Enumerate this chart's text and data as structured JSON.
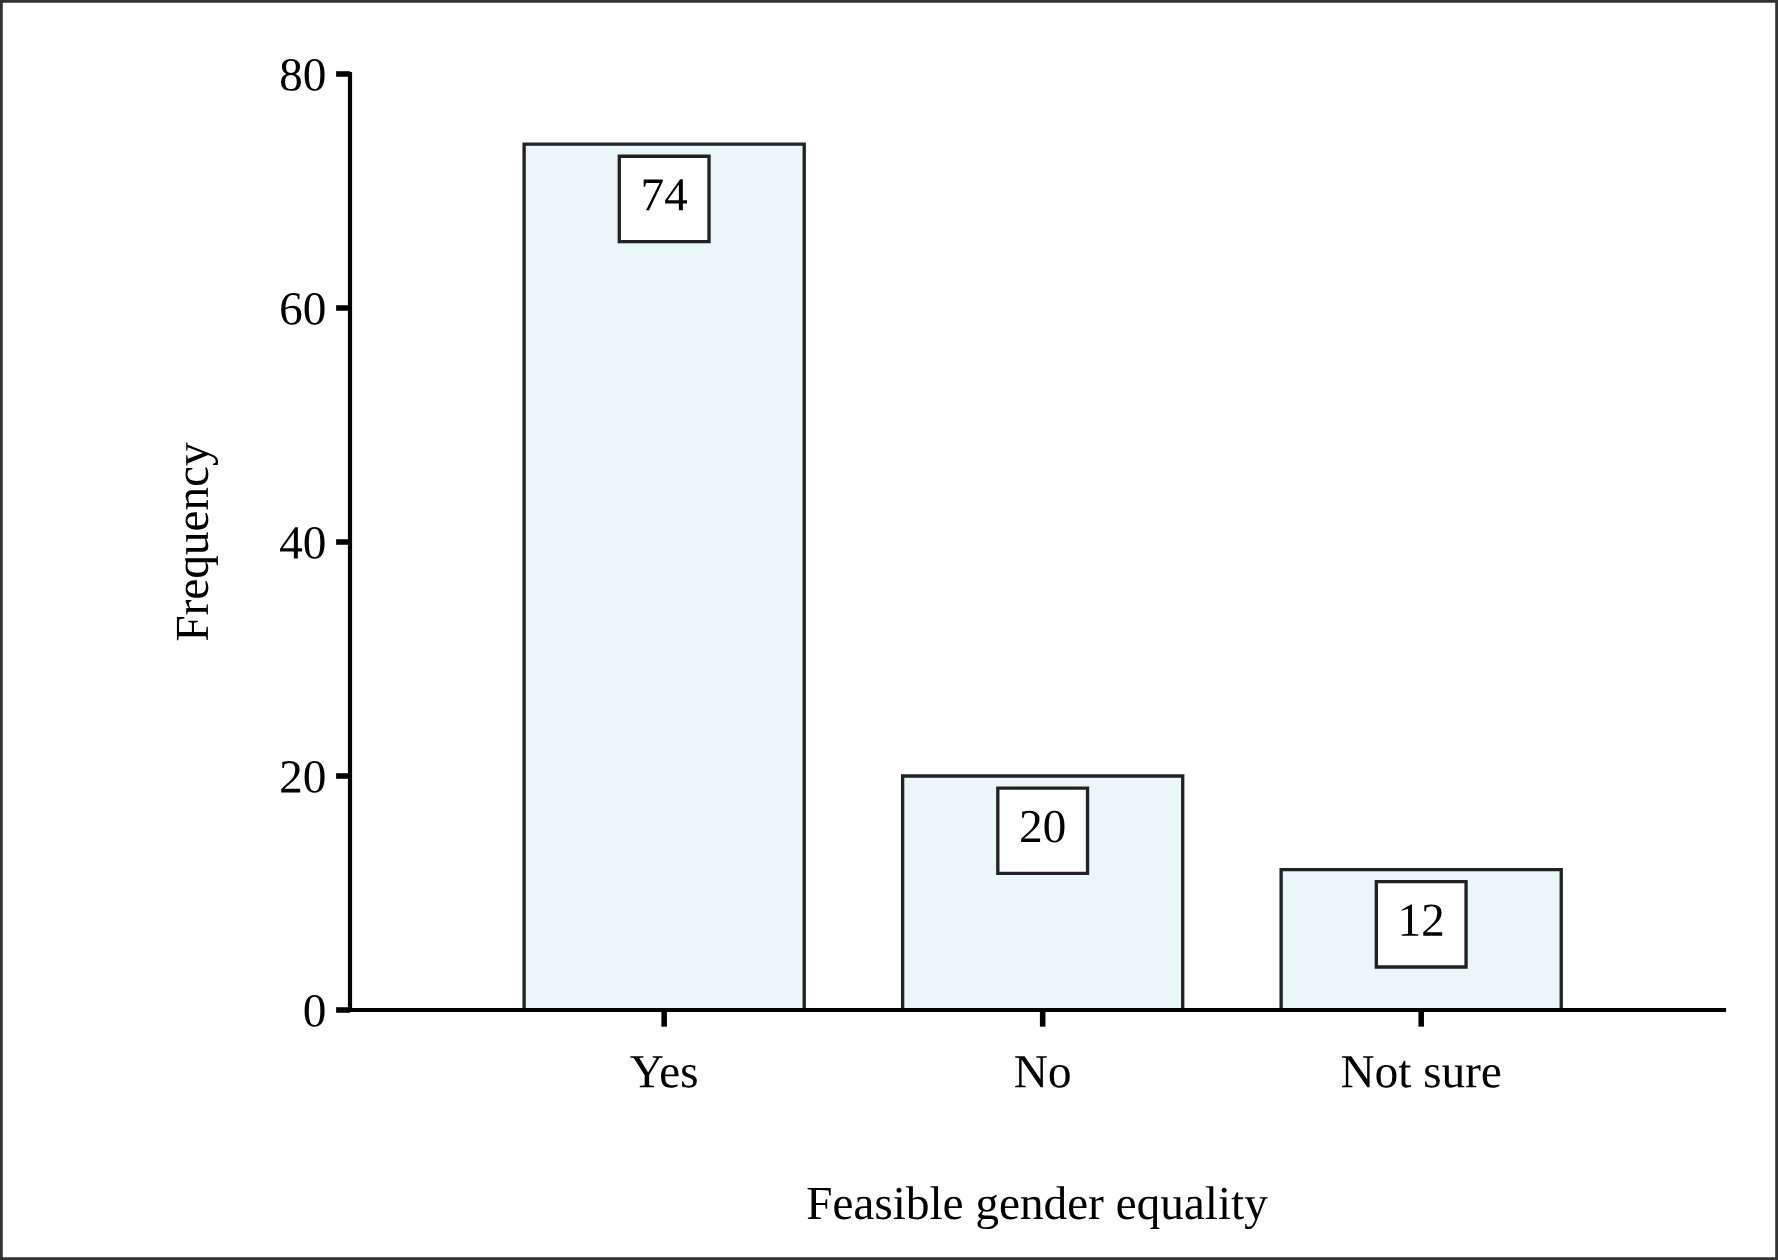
{
  "chart_data": {
    "type": "bar",
    "xlabel": "Feasible gender equality",
    "ylabel": "Frequency",
    "categories": [
      "Yes",
      "No",
      "Not sure"
    ],
    "values": [
      74,
      20,
      12
    ],
    "color": "#eaf6f7",
    "data_labels": true,
    "ylim": [
      0,
      80
    ],
    "yticks": [
      0,
      20,
      40,
      60,
      80
    ],
    "grid": false,
    "legend": false
  }
}
